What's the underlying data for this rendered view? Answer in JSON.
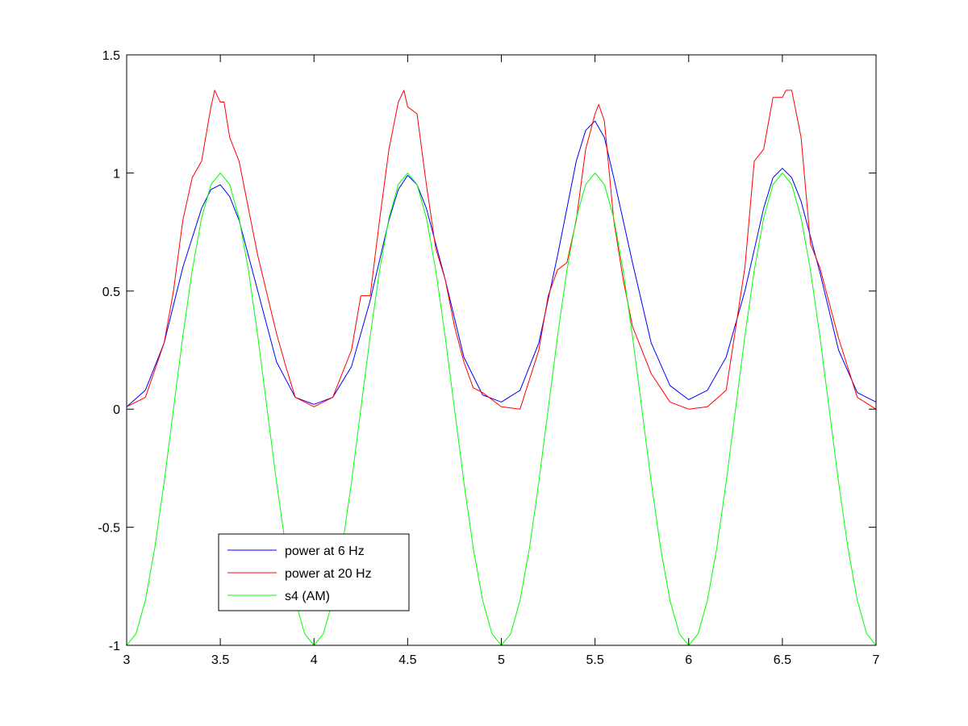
{
  "chart_data": {
    "type": "line",
    "title": "",
    "xlabel": "",
    "ylabel": "",
    "xlim": [
      3,
      7
    ],
    "ylim": [
      -1,
      1.5
    ],
    "grid": false,
    "legend_position": "lower-left",
    "x_ticks": [
      "3",
      "3.5",
      "4",
      "4.5",
      "5",
      "5.5",
      "6",
      "6.5",
      "7"
    ],
    "x_tick_values": [
      3,
      3.5,
      4,
      4.5,
      5,
      5.5,
      6,
      6.5,
      7
    ],
    "y_ticks": [
      "1.5",
      "1",
      "0.5",
      "0",
      "-0.5",
      "-1"
    ],
    "y_tick_values": [
      1.5,
      1,
      0.5,
      0,
      -0.5,
      -1
    ],
    "series": [
      {
        "name": "power at 6 Hz",
        "color": "#0000ff",
        "x": [
          3.0,
          3.1,
          3.2,
          3.3,
          3.4,
          3.45,
          3.5,
          3.55,
          3.6,
          3.7,
          3.8,
          3.9,
          4.0,
          4.1,
          4.2,
          4.3,
          4.4,
          4.45,
          4.5,
          4.55,
          4.6,
          4.7,
          4.8,
          4.9,
          5.0,
          5.1,
          5.2,
          5.3,
          5.4,
          5.45,
          5.5,
          5.55,
          5.6,
          5.7,
          5.8,
          5.9,
          6.0,
          6.1,
          6.2,
          6.3,
          6.4,
          6.45,
          6.5,
          6.55,
          6.6,
          6.7,
          6.8,
          6.9,
          7.0
        ],
        "y": [
          0.01,
          0.08,
          0.28,
          0.6,
          0.85,
          0.93,
          0.95,
          0.9,
          0.8,
          0.5,
          0.2,
          0.05,
          0.02,
          0.05,
          0.18,
          0.46,
          0.8,
          0.93,
          0.99,
          0.95,
          0.85,
          0.55,
          0.22,
          0.06,
          0.03,
          0.08,
          0.28,
          0.65,
          1.05,
          1.18,
          1.22,
          1.15,
          0.98,
          0.62,
          0.28,
          0.1,
          0.04,
          0.08,
          0.22,
          0.5,
          0.85,
          0.98,
          1.02,
          0.98,
          0.88,
          0.58,
          0.25,
          0.07,
          0.03
        ]
      },
      {
        "name": "power at 20 Hz",
        "color": "#ff0000",
        "x": [
          3.0,
          3.1,
          3.2,
          3.25,
          3.3,
          3.35,
          3.4,
          3.45,
          3.47,
          3.5,
          3.52,
          3.55,
          3.6,
          3.65,
          3.7,
          3.8,
          3.85,
          3.9,
          4.0,
          4.1,
          4.2,
          4.25,
          4.3,
          4.35,
          4.4,
          4.45,
          4.48,
          4.5,
          4.55,
          4.6,
          4.65,
          4.7,
          4.75,
          4.8,
          4.85,
          4.9,
          5.0,
          5.1,
          5.2,
          5.25,
          5.3,
          5.35,
          5.4,
          5.45,
          5.5,
          5.52,
          5.55,
          5.6,
          5.65,
          5.7,
          5.8,
          5.9,
          6.0,
          6.1,
          6.2,
          6.3,
          6.35,
          6.4,
          6.45,
          6.5,
          6.52,
          6.55,
          6.6,
          6.65,
          6.7,
          6.8,
          6.9,
          7.0
        ],
        "y": [
          0.01,
          0.05,
          0.28,
          0.5,
          0.8,
          0.98,
          1.05,
          1.28,
          1.35,
          1.3,
          1.3,
          1.15,
          1.05,
          0.85,
          0.65,
          0.32,
          0.18,
          0.05,
          0.01,
          0.05,
          0.25,
          0.48,
          0.48,
          0.8,
          1.1,
          1.3,
          1.35,
          1.28,
          1.25,
          0.95,
          0.68,
          0.55,
          0.35,
          0.2,
          0.09,
          0.07,
          0.01,
          0.0,
          0.25,
          0.48,
          0.59,
          0.62,
          0.8,
          1.1,
          1.25,
          1.29,
          1.22,
          0.8,
          0.55,
          0.35,
          0.15,
          0.03,
          0.0,
          0.01,
          0.08,
          0.6,
          1.05,
          1.1,
          1.32,
          1.32,
          1.35,
          1.35,
          1.15,
          0.7,
          0.6,
          0.3,
          0.05,
          0.0
        ]
      },
      {
        "name": "s4 (AM)",
        "color": "#00ff00",
        "x": [
          3.0,
          3.05,
          3.1,
          3.15,
          3.2,
          3.25,
          3.3,
          3.35,
          3.4,
          3.45,
          3.5,
          3.55,
          3.6,
          3.65,
          3.7,
          3.75,
          3.8,
          3.85,
          3.9,
          3.95,
          4.0,
          4.05,
          4.1,
          4.15,
          4.2,
          4.25,
          4.3,
          4.35,
          4.4,
          4.45,
          4.5,
          4.55,
          4.6,
          4.65,
          4.7,
          4.75,
          4.8,
          4.85,
          4.9,
          4.95,
          5.0,
          5.05,
          5.1,
          5.15,
          5.2,
          5.25,
          5.3,
          5.35,
          5.4,
          5.45,
          5.5,
          5.55,
          5.6,
          5.65,
          5.7,
          5.75,
          5.8,
          5.85,
          5.9,
          5.95,
          6.0,
          6.05,
          6.1,
          6.15,
          6.2,
          6.25,
          6.3,
          6.35,
          6.4,
          6.45,
          6.5,
          6.55,
          6.6,
          6.65,
          6.7,
          6.75,
          6.8,
          6.85,
          6.9,
          6.95,
          7.0
        ],
        "y": [
          -1.0,
          -0.951,
          -0.809,
          -0.588,
          -0.309,
          0.0,
          0.309,
          0.588,
          0.809,
          0.951,
          1.0,
          0.951,
          0.809,
          0.588,
          0.309,
          0.0,
          -0.309,
          -0.588,
          -0.809,
          -0.951,
          -1.0,
          -0.951,
          -0.809,
          -0.588,
          -0.309,
          0.0,
          0.309,
          0.588,
          0.809,
          0.951,
          1.0,
          0.951,
          0.809,
          0.588,
          0.309,
          0.0,
          -0.309,
          -0.588,
          -0.809,
          -0.951,
          -1.0,
          -0.951,
          -0.809,
          -0.588,
          -0.309,
          0.0,
          0.309,
          0.588,
          0.809,
          0.951,
          1.0,
          0.951,
          0.809,
          0.588,
          0.309,
          0.0,
          -0.309,
          -0.588,
          -0.809,
          -0.951,
          -1.0,
          -0.951,
          -0.809,
          -0.588,
          -0.309,
          0.0,
          0.309,
          0.588,
          0.809,
          0.951,
          1.0,
          0.951,
          0.809,
          0.588,
          0.309,
          0.0,
          -0.309,
          -0.588,
          -0.809,
          -0.951,
          -1.0
        ]
      }
    ]
  }
}
